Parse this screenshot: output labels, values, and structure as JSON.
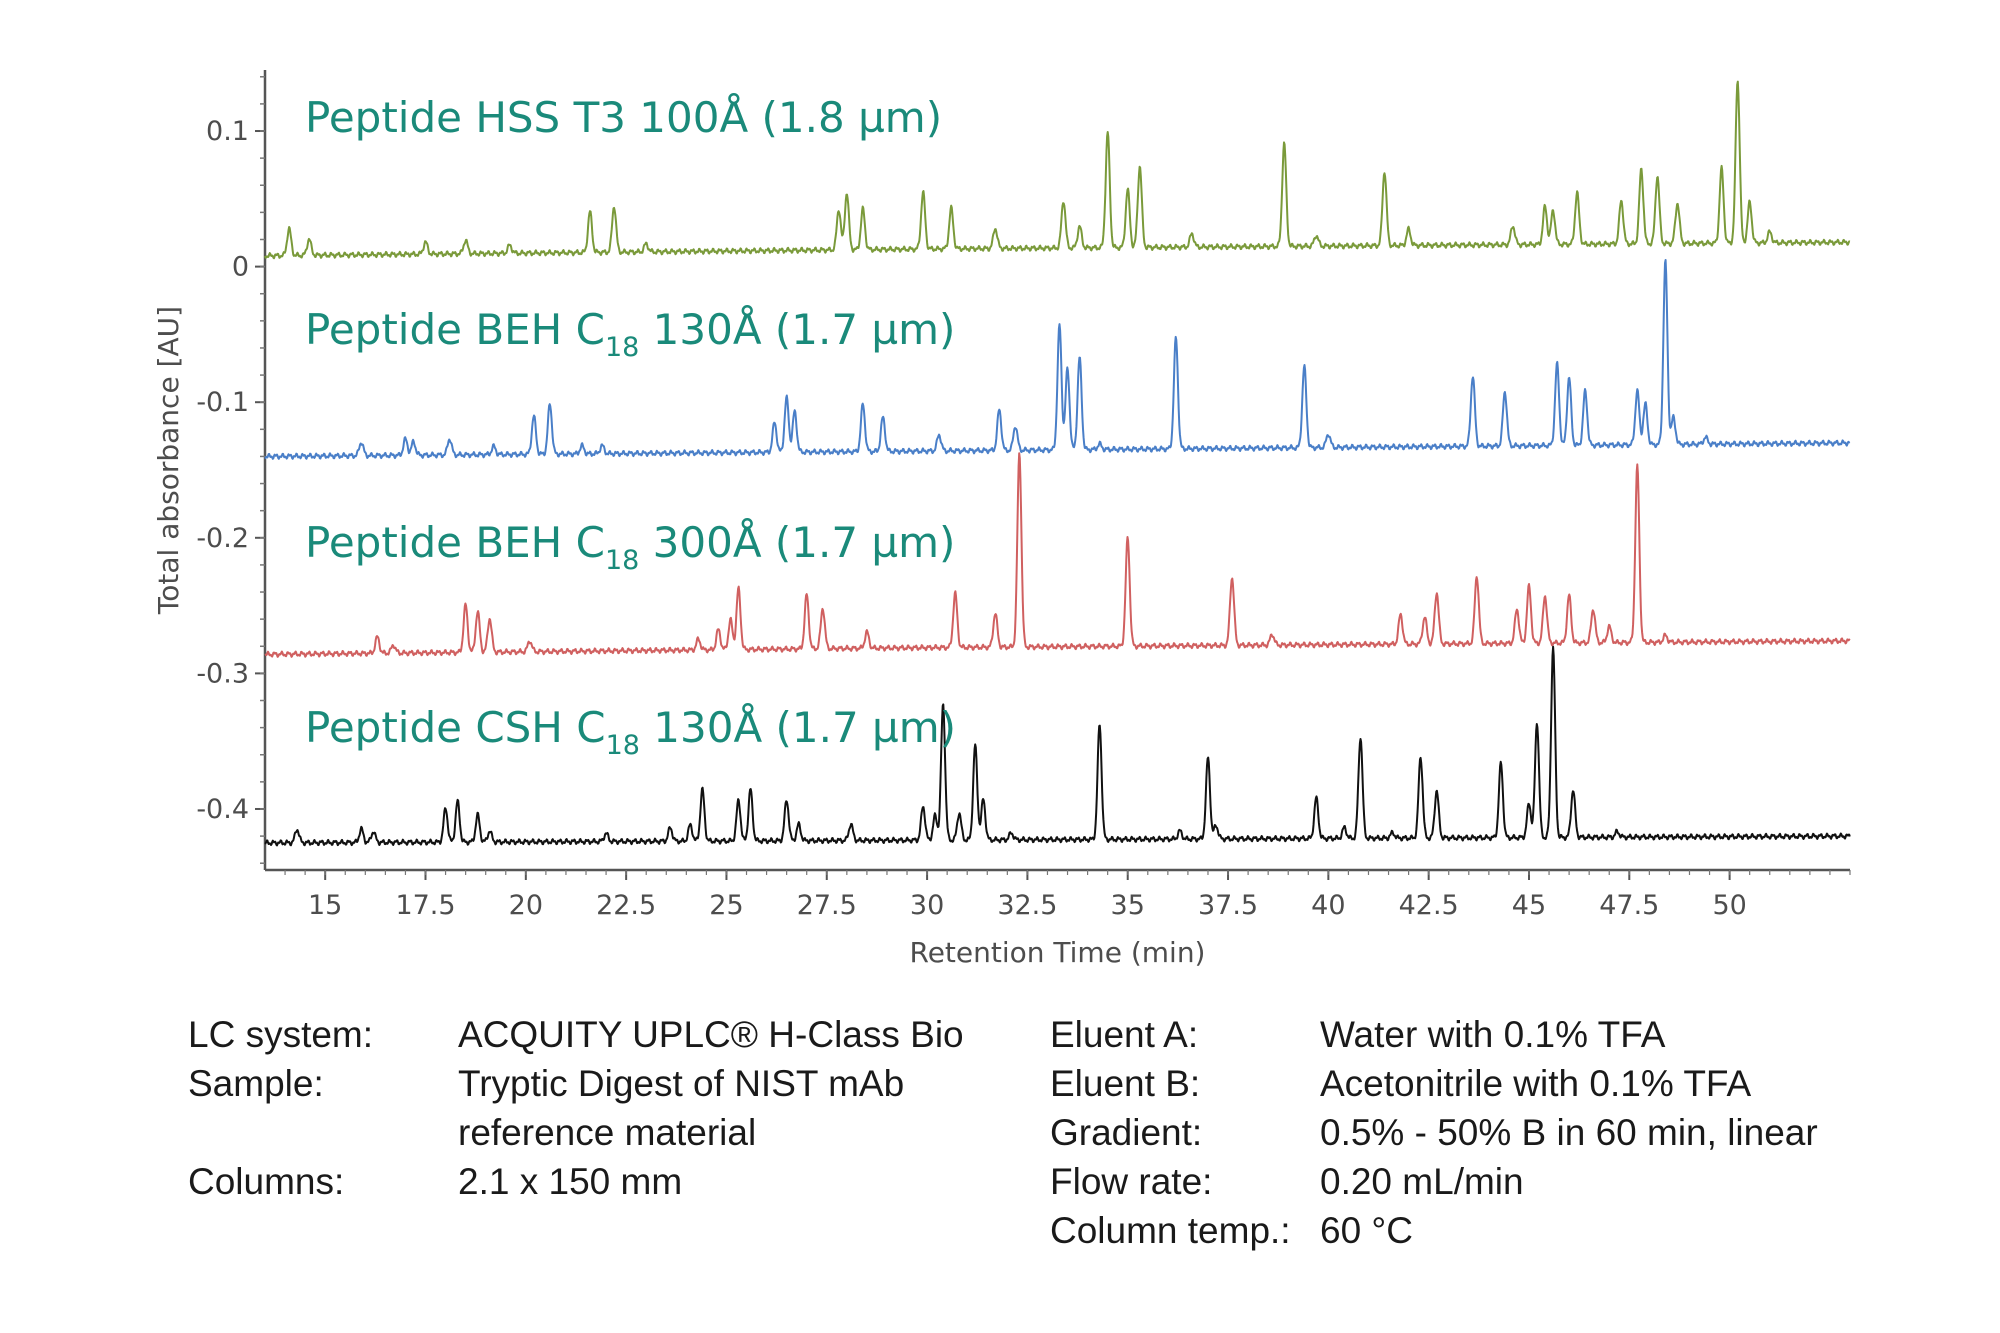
{
  "chart_data": {
    "type": "line",
    "xlabel": "Retention Time (min)",
    "ylabel": "Total absorbance [AU]",
    "xlim": [
      13.5,
      53
    ],
    "ylim": [
      -0.445,
      0.145
    ],
    "xticks": [
      "15",
      "17.5",
      "20",
      "22.5",
      "25",
      "27.5",
      "30",
      "32.5",
      "35",
      "37.5",
      "40",
      "42.5",
      "45",
      "47.5",
      "50"
    ],
    "xtick_values": [
      15,
      17.5,
      20,
      22.5,
      25,
      27.5,
      30,
      32.5,
      35,
      37.5,
      40,
      42.5,
      45,
      47.5,
      50
    ],
    "yticks": [
      "0.1",
      "0",
      "-0.1",
      "-0.2",
      "-0.3",
      "-0.4"
    ],
    "ytick_values": [
      0.1,
      0,
      -0.1,
      -0.2,
      -0.3,
      -0.4
    ],
    "series": [
      {
        "name": "Peptide HSS T3 100Å (1.8 µm)",
        "label_main": "Peptide HSS T3 100Å (1.8 µm)",
        "label_sub": "",
        "label_tail": "",
        "color": "#7a9a3a",
        "baseline": [
          [
            13.5,
            0.008
          ],
          [
            30,
            0.013
          ],
          [
            53,
            0.018
          ]
        ],
        "peaks": [
          [
            14.1,
            0.02
          ],
          [
            14.6,
            0.012
          ],
          [
            17.5,
            0.009
          ],
          [
            18.5,
            0.01
          ],
          [
            19.6,
            0.006
          ],
          [
            21.6,
            0.03
          ],
          [
            22.2,
            0.034
          ],
          [
            23.0,
            0.006
          ],
          [
            27.8,
            0.03
          ],
          [
            28.0,
            0.042
          ],
          [
            28.4,
            0.03
          ],
          [
            29.9,
            0.042
          ],
          [
            30.6,
            0.03
          ],
          [
            31.7,
            0.015
          ],
          [
            33.4,
            0.035
          ],
          [
            33.8,
            0.016
          ],
          [
            34.5,
            0.085
          ],
          [
            35.0,
            0.043
          ],
          [
            35.3,
            0.06
          ],
          [
            36.6,
            0.01
          ],
          [
            38.9,
            0.076
          ],
          [
            39.7,
            0.008
          ],
          [
            41.4,
            0.055
          ],
          [
            42.0,
            0.012
          ],
          [
            44.6,
            0.014
          ],
          [
            45.4,
            0.028
          ],
          [
            45.6,
            0.025
          ],
          [
            46.2,
            0.038
          ],
          [
            47.3,
            0.032
          ],
          [
            47.8,
            0.055
          ],
          [
            48.2,
            0.05
          ],
          [
            48.7,
            0.03
          ],
          [
            49.8,
            0.055
          ],
          [
            50.2,
            0.12
          ],
          [
            50.5,
            0.03
          ],
          [
            51.0,
            0.008
          ]
        ]
      },
      {
        "name": "Peptide BEH C18 130Å (1.7 µm)",
        "label_main": "Peptide BEH C",
        "label_sub": "18",
        "label_tail": " 130Å  (1.7 µm)",
        "color": "#4a7fc8",
        "baseline": [
          [
            13.5,
            -0.14
          ],
          [
            30,
            -0.136
          ],
          [
            53,
            -0.13
          ]
        ],
        "peaks": [
          [
            15.9,
            0.01
          ],
          [
            17.0,
            0.012
          ],
          [
            17.2,
            0.01
          ],
          [
            18.1,
            0.012
          ],
          [
            19.2,
            0.006
          ],
          [
            20.2,
            0.028
          ],
          [
            20.6,
            0.037
          ],
          [
            21.4,
            0.006
          ],
          [
            21.9,
            0.006
          ],
          [
            26.2,
            0.022
          ],
          [
            26.5,
            0.04
          ],
          [
            26.7,
            0.03
          ],
          [
            28.4,
            0.035
          ],
          [
            28.9,
            0.025
          ],
          [
            30.3,
            0.012
          ],
          [
            31.8,
            0.03
          ],
          [
            32.2,
            0.018
          ],
          [
            33.3,
            0.092
          ],
          [
            33.5,
            0.06
          ],
          [
            33.8,
            0.068
          ],
          [
            34.3,
            0.004
          ],
          [
            36.2,
            0.082
          ],
          [
            39.4,
            0.06
          ],
          [
            40.0,
            0.01
          ],
          [
            43.6,
            0.052
          ],
          [
            44.4,
            0.04
          ],
          [
            45.7,
            0.06
          ],
          [
            46.0,
            0.05
          ],
          [
            46.4,
            0.04
          ],
          [
            47.7,
            0.04
          ],
          [
            47.9,
            0.03
          ],
          [
            48.4,
            0.135
          ],
          [
            48.6,
            0.02
          ],
          [
            49.4,
            0.005
          ]
        ]
      },
      {
        "name": "Peptide BEH C18 300Å (1.7 µm)",
        "label_main": "Peptide BEH C",
        "label_sub": "18",
        "label_tail": " 300Å  (1.7 µm)",
        "color": "#d06060",
        "baseline": [
          [
            13.5,
            -0.286
          ],
          [
            30,
            -0.281
          ],
          [
            53,
            -0.276
          ]
        ],
        "peaks": [
          [
            16.3,
            0.012
          ],
          [
            16.7,
            0.006
          ],
          [
            18.5,
            0.035
          ],
          [
            18.8,
            0.03
          ],
          [
            19.1,
            0.025
          ],
          [
            20.1,
            0.008
          ],
          [
            24.3,
            0.008
          ],
          [
            24.8,
            0.015
          ],
          [
            25.1,
            0.022
          ],
          [
            25.3,
            0.045
          ],
          [
            27.0,
            0.04
          ],
          [
            27.4,
            0.03
          ],
          [
            28.5,
            0.012
          ],
          [
            30.7,
            0.04
          ],
          [
            31.7,
            0.025
          ],
          [
            32.3,
            0.143
          ],
          [
            35.0,
            0.08
          ],
          [
            37.6,
            0.05
          ],
          [
            38.6,
            0.008
          ],
          [
            41.8,
            0.022
          ],
          [
            42.4,
            0.02
          ],
          [
            42.7,
            0.038
          ],
          [
            43.7,
            0.05
          ],
          [
            44.7,
            0.025
          ],
          [
            45.0,
            0.042
          ],
          [
            45.4,
            0.035
          ],
          [
            46.0,
            0.035
          ],
          [
            46.6,
            0.025
          ],
          [
            47.0,
            0.012
          ],
          [
            47.7,
            0.13
          ],
          [
            48.4,
            0.005
          ]
        ]
      },
      {
        "name": "Peptide CSH C18 130Å (1.7 µm)",
        "label_main": "Peptide CSH C",
        "label_sub": "18",
        "label_tail": " 130Å (1.7 µm)",
        "color": "#111111",
        "baseline": [
          [
            13.5,
            -0.425
          ],
          [
            30,
            -0.423
          ],
          [
            53,
            -0.42
          ]
        ],
        "peaks": [
          [
            14.3,
            0.01
          ],
          [
            15.9,
            0.01
          ],
          [
            16.2,
            0.008
          ],
          [
            18.0,
            0.025
          ],
          [
            18.3,
            0.03
          ],
          [
            18.8,
            0.02
          ],
          [
            19.1,
            0.008
          ],
          [
            22.0,
            0.006
          ],
          [
            23.6,
            0.01
          ],
          [
            24.1,
            0.012
          ],
          [
            24.4,
            0.038
          ],
          [
            25.3,
            0.03
          ],
          [
            25.6,
            0.038
          ],
          [
            26.5,
            0.03
          ],
          [
            26.8,
            0.012
          ],
          [
            28.1,
            0.012
          ],
          [
            29.9,
            0.025
          ],
          [
            30.2,
            0.018
          ],
          [
            30.4,
            0.1
          ],
          [
            30.8,
            0.02
          ],
          [
            31.2,
            0.07
          ],
          [
            31.4,
            0.03
          ],
          [
            32.1,
            0.005
          ],
          [
            34.3,
            0.085
          ],
          [
            36.3,
            0.006
          ],
          [
            37.0,
            0.06
          ],
          [
            37.2,
            0.01
          ],
          [
            39.7,
            0.03
          ],
          [
            40.4,
            0.008
          ],
          [
            40.8,
            0.075
          ],
          [
            41.6,
            0.004
          ],
          [
            42.3,
            0.06
          ],
          [
            42.7,
            0.035
          ],
          [
            44.3,
            0.055
          ],
          [
            45.0,
            0.025
          ],
          [
            45.2,
            0.085
          ],
          [
            45.6,
            0.14
          ],
          [
            46.1,
            0.035
          ],
          [
            47.2,
            0.004
          ]
        ]
      }
    ]
  },
  "conditions": {
    "left": [
      {
        "key": "LC system:",
        "value": "ACQUITY UPLC® H-Class Bio"
      },
      {
        "key": "Sample:",
        "value": "Tryptic Digest of NIST mAb"
      },
      {
        "key": "",
        "value": "reference material"
      },
      {
        "key": "Columns:",
        "value": "2.1 x 150 mm"
      }
    ],
    "right": [
      {
        "key": "Eluent A:",
        "value": "Water with 0.1% TFA"
      },
      {
        "key": "Eluent B:",
        "value": "Acetonitrile with 0.1% TFA"
      },
      {
        "key": "Gradient:",
        "value": "0.5% - 50% B in 60 min, linear"
      },
      {
        "key": "Flow rate:",
        "value": "0.20 mL/min"
      },
      {
        "key": "Column temp.:",
        "value": "60 °C"
      }
    ]
  }
}
